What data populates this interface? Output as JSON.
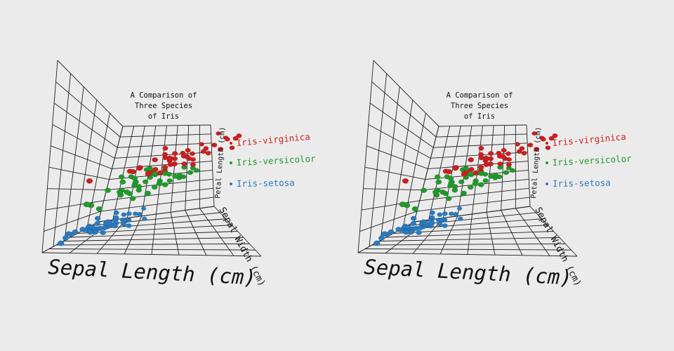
{
  "figure": {
    "title_lines": [
      "A Comparison of",
      "Three Species",
      "of Iris"
    ],
    "xlabel": "Sepal Length (cm)",
    "ylabel": "Sepal Width (cm)",
    "zlabel": "Petal Length (cm)"
  },
  "legend": [
    {
      "name": "Iris-virginica",
      "color": "#cc1f1f"
    },
    {
      "name": "Iris-versicolor",
      "color": "#22992b"
    },
    {
      "name": "Iris-setosa",
      "color": "#2a7bbf"
    }
  ],
  "chart_data": {
    "type": "scatter",
    "title": "A Comparison of Three Species of Iris",
    "xlabel": "Sepal Length (cm)",
    "ylabel": "Sepal Width (cm)",
    "zlabel": "Petal Length (cm)",
    "grid": true,
    "legend_position": "right",
    "layout": "stereo pair (two identical views side by side)",
    "xlim": [
      4.3,
      7.9
    ],
    "ylim": [
      2.0,
      4.4
    ],
    "zlim": [
      1.0,
      6.9
    ],
    "series": [
      {
        "name": "Iris-setosa",
        "color": "#2a7bbf",
        "points": [
          [
            5.1,
            3.5,
            1.4
          ],
          [
            4.9,
            3.0,
            1.4
          ],
          [
            4.7,
            3.2,
            1.3
          ],
          [
            4.6,
            3.1,
            1.5
          ],
          [
            5.0,
            3.6,
            1.4
          ],
          [
            5.4,
            3.9,
            1.7
          ],
          [
            4.6,
            3.4,
            1.4
          ],
          [
            5.0,
            3.4,
            1.5
          ],
          [
            4.4,
            2.9,
            1.4
          ],
          [
            4.9,
            3.1,
            1.5
          ],
          [
            5.4,
            3.7,
            1.5
          ],
          [
            4.8,
            3.4,
            1.6
          ],
          [
            4.8,
            3.0,
            1.4
          ],
          [
            4.3,
            3.0,
            1.1
          ],
          [
            5.8,
            4.0,
            1.2
          ],
          [
            5.7,
            4.4,
            1.5
          ],
          [
            5.4,
            3.9,
            1.3
          ],
          [
            5.1,
            3.5,
            1.4
          ],
          [
            5.7,
            3.8,
            1.7
          ],
          [
            5.1,
            3.8,
            1.5
          ],
          [
            5.4,
            3.4,
            1.7
          ],
          [
            5.1,
            3.7,
            1.5
          ],
          [
            4.6,
            3.6,
            1.0
          ],
          [
            5.1,
            3.3,
            1.7
          ],
          [
            4.8,
            3.4,
            1.9
          ],
          [
            5.0,
            3.0,
            1.6
          ],
          [
            5.0,
            3.4,
            1.6
          ],
          [
            5.2,
            3.5,
            1.5
          ],
          [
            5.2,
            3.4,
            1.4
          ],
          [
            4.7,
            3.2,
            1.6
          ],
          [
            4.8,
            3.1,
            1.6
          ],
          [
            5.4,
            3.4,
            1.5
          ],
          [
            5.2,
            4.1,
            1.5
          ],
          [
            5.5,
            4.2,
            1.4
          ],
          [
            4.9,
            3.1,
            1.5
          ],
          [
            5.0,
            3.2,
            1.2
          ],
          [
            5.5,
            3.5,
            1.3
          ],
          [
            4.4,
            3.0,
            1.3
          ],
          [
            5.1,
            3.4,
            1.5
          ],
          [
            5.0,
            3.5,
            1.3
          ],
          [
            4.5,
            2.3,
            1.3
          ],
          [
            4.4,
            3.2,
            1.3
          ],
          [
            5.0,
            3.5,
            1.6
          ],
          [
            5.1,
            3.8,
            1.9
          ],
          [
            4.8,
            3.0,
            1.4
          ],
          [
            5.1,
            3.8,
            1.6
          ],
          [
            4.6,
            3.2,
            1.4
          ],
          [
            5.3,
            3.7,
            1.5
          ],
          [
            5.0,
            3.3,
            1.4
          ]
        ]
      },
      {
        "name": "Iris-versicolor",
        "color": "#22992b",
        "points": [
          [
            7.0,
            3.2,
            4.7
          ],
          [
            6.4,
            3.2,
            4.5
          ],
          [
            6.9,
            3.1,
            4.9
          ],
          [
            5.5,
            2.3,
            4.0
          ],
          [
            6.5,
            2.8,
            4.6
          ],
          [
            5.7,
            2.8,
            4.5
          ],
          [
            6.3,
            3.3,
            4.7
          ],
          [
            4.9,
            2.4,
            3.3
          ],
          [
            6.6,
            2.9,
            4.6
          ],
          [
            5.2,
            2.7,
            3.9
          ],
          [
            5.0,
            2.0,
            3.5
          ],
          [
            5.9,
            3.0,
            4.2
          ],
          [
            6.0,
            2.2,
            4.0
          ],
          [
            6.1,
            2.9,
            4.7
          ],
          [
            5.6,
            2.9,
            3.6
          ],
          [
            6.7,
            3.1,
            4.4
          ],
          [
            5.6,
            3.0,
            4.5
          ],
          [
            5.8,
            2.7,
            4.1
          ],
          [
            6.2,
            2.2,
            4.5
          ],
          [
            5.6,
            2.5,
            3.9
          ],
          [
            5.9,
            3.2,
            4.8
          ],
          [
            6.1,
            2.8,
            4.0
          ],
          [
            6.3,
            2.5,
            4.9
          ],
          [
            6.4,
            2.9,
            4.3
          ],
          [
            6.6,
            3.0,
            4.4
          ],
          [
            6.8,
            2.8,
            4.8
          ],
          [
            6.7,
            3.0,
            5.0
          ],
          [
            6.0,
            2.9,
            4.5
          ],
          [
            5.7,
            2.6,
            3.5
          ],
          [
            5.5,
            2.4,
            3.8
          ],
          [
            5.8,
            2.7,
            3.9
          ],
          [
            6.0,
            2.7,
            5.1
          ],
          [
            5.4,
            3.0,
            4.5
          ],
          [
            6.0,
            3.4,
            4.5
          ],
          [
            6.3,
            2.3,
            4.4
          ],
          [
            5.5,
            2.5,
            4.0
          ],
          [
            5.5,
            2.6,
            4.4
          ],
          [
            6.1,
            3.0,
            4.6
          ],
          [
            5.0,
            2.3,
            3.3
          ],
          [
            5.7,
            3.0,
            4.2
          ],
          [
            5.7,
            2.9,
            4.2
          ],
          [
            6.2,
            2.9,
            4.3
          ],
          [
            5.1,
            2.5,
            3.0
          ],
          [
            5.7,
            2.8,
            4.1
          ]
        ]
      },
      {
        "name": "Iris-virginica",
        "color": "#cc1f1f",
        "points": [
          [
            6.3,
            3.3,
            6.0
          ],
          [
            5.8,
            2.7,
            5.1
          ],
          [
            7.1,
            3.0,
            5.9
          ],
          [
            6.3,
            2.9,
            5.6
          ],
          [
            6.5,
            3.0,
            5.8
          ],
          [
            7.6,
            3.0,
            6.6
          ],
          [
            4.9,
            2.5,
            4.5
          ],
          [
            7.3,
            2.9,
            6.3
          ],
          [
            6.7,
            2.5,
            5.8
          ],
          [
            7.2,
            3.6,
            6.1
          ],
          [
            6.5,
            3.2,
            5.1
          ],
          [
            6.4,
            2.7,
            5.3
          ],
          [
            6.8,
            3.0,
            5.5
          ],
          [
            5.7,
            2.5,
            5.0
          ],
          [
            5.8,
            2.8,
            5.1
          ],
          [
            6.4,
            3.2,
            5.3
          ],
          [
            6.5,
            3.0,
            5.5
          ],
          [
            7.7,
            3.8,
            6.7
          ],
          [
            7.7,
            2.6,
            6.9
          ],
          [
            6.0,
            2.2,
            5.0
          ],
          [
            6.9,
            3.2,
            5.7
          ],
          [
            5.6,
            2.8,
            4.9
          ],
          [
            7.7,
            2.8,
            6.7
          ],
          [
            6.3,
            2.7,
            4.9
          ],
          [
            6.7,
            3.3,
            5.7
          ],
          [
            7.2,
            3.2,
            6.0
          ],
          [
            6.2,
            2.8,
            4.8
          ],
          [
            6.1,
            3.0,
            4.9
          ],
          [
            6.4,
            2.8,
            5.6
          ],
          [
            7.2,
            3.0,
            5.8
          ],
          [
            7.4,
            2.8,
            6.1
          ],
          [
            7.9,
            3.8,
            6.4
          ],
          [
            6.4,
            2.8,
            5.6
          ],
          [
            6.3,
            2.8,
            5.1
          ],
          [
            6.1,
            2.6,
            5.6
          ],
          [
            7.7,
            3.0,
            6.1
          ],
          [
            6.3,
            3.4,
            5.6
          ],
          [
            6.4,
            3.1,
            5.5
          ],
          [
            6.0,
            3.0,
            4.8
          ],
          [
            6.9,
            3.1,
            5.4
          ],
          [
            6.7,
            3.1,
            5.6
          ],
          [
            6.9,
            3.1,
            5.1
          ],
          [
            6.8,
            3.2,
            5.9
          ],
          [
            6.7,
            3.0,
            5.2
          ],
          [
            6.5,
            3.0,
            5.2
          ]
        ]
      }
    ]
  }
}
